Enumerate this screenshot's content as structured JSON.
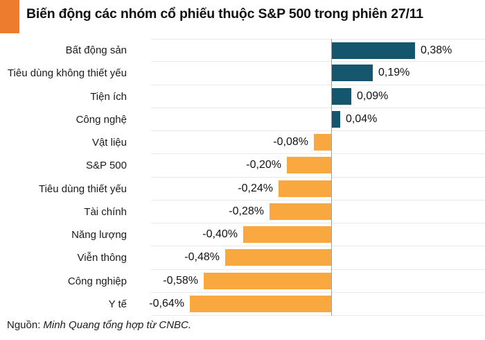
{
  "header": {
    "title": "Biến động các nhóm cổ phiếu thuộc S&P 500 trong phiên 27/11",
    "accent_color": "#ED7D2D"
  },
  "chart_data": {
    "type": "bar",
    "orientation": "horizontal",
    "title": "Biến động các nhóm cổ phiếu thuộc S&P 500 trong phiên 27/11",
    "categories": [
      "Bất động sản",
      "Tiêu dùng không thiết yếu",
      "Tiện ích",
      "Công nghệ",
      "Vật liệu",
      "S&P 500",
      "Tiêu dùng thiết yếu",
      "Tài chính",
      "Năng lượng",
      "Viễn thông",
      "Công nghiệp",
      "Y tế"
    ],
    "values": [
      0.38,
      0.19,
      0.09,
      0.04,
      -0.08,
      -0.2,
      -0.24,
      -0.28,
      -0.4,
      -0.48,
      -0.58,
      -0.64
    ],
    "value_labels": [
      "0,38%",
      "0,19%",
      "0,09%",
      "0,04%",
      "-0,08%",
      "-0,20%",
      "-0,24%",
      "-0,28%",
      "-0,40%",
      "-0,48%",
      "-0,58%",
      "-0,64%"
    ],
    "unit": "%",
    "xlim": [
      -0.82,
      0.7
    ],
    "grid": "row-separators",
    "legend": "none",
    "zero_axis_line": true,
    "colors": {
      "positive": "#14566E",
      "negative": "#F8A83E",
      "gridline": "#E9E9E9",
      "axis_line": "#97A4AE"
    }
  },
  "footer": {
    "prefix": "Nguồn:",
    "text": "Minh Quang tổng hợp từ CNBC."
  }
}
